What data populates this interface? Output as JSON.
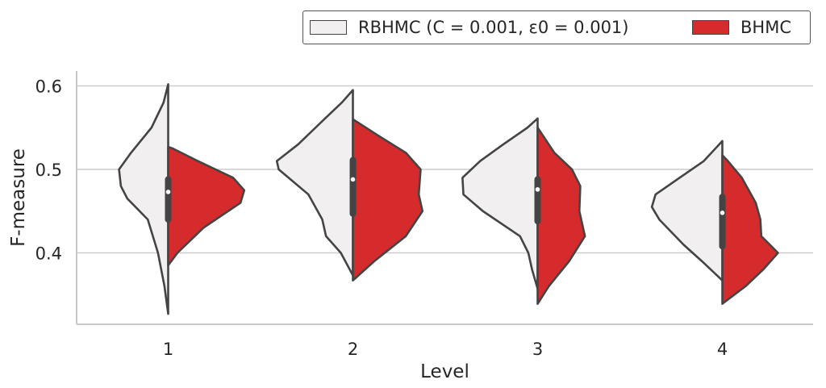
{
  "chart_data": {
    "type": "violin",
    "xlabel": "Level",
    "ylabel": "F-measure",
    "categories": [
      "1",
      "2",
      "3",
      "4"
    ],
    "yticks": [
      "0.4",
      "0.5",
      "0.6"
    ],
    "ylim": [
      0.315,
      0.625
    ],
    "grid": "horizontal",
    "legend_position": "top-right",
    "series": [
      {
        "name": "RBHMC (C = 0.001, ε0 = 0.001)",
        "color": "#f1eff0",
        "side": "left",
        "violins": [
          {
            "profile": [
              [
                0.327,
                0.0
              ],
              [
                0.36,
                0.04
              ],
              [
                0.4,
                0.11
              ],
              [
                0.44,
                0.22
              ],
              [
                0.465,
                0.44
              ],
              [
                0.48,
                0.51
              ],
              [
                0.5,
                0.53
              ],
              [
                0.52,
                0.4
              ],
              [
                0.55,
                0.18
              ],
              [
                0.58,
                0.05
              ],
              [
                0.602,
                0.0
              ]
            ],
            "median": 0.473,
            "q1": 0.44,
            "q3": 0.488
          },
          {
            "profile": [
              [
                0.373,
                0.0
              ],
              [
                0.4,
                0.13
              ],
              [
                0.42,
                0.29
              ],
              [
                0.44,
                0.33
              ],
              [
                0.47,
                0.48
              ],
              [
                0.5,
                0.8
              ],
              [
                0.51,
                0.82
              ],
              [
                0.53,
                0.59
              ],
              [
                0.56,
                0.31
              ],
              [
                0.58,
                0.12
              ],
              [
                0.595,
                0.0
              ]
            ],
            "median": 0.488,
            "q1": 0.447,
            "q3": 0.511
          },
          {
            "profile": [
              [
                0.357,
                0.0
              ],
              [
                0.38,
                0.06
              ],
              [
                0.4,
                0.1
              ],
              [
                0.42,
                0.19
              ],
              [
                0.45,
                0.59
              ],
              [
                0.47,
                0.8
              ],
              [
                0.49,
                0.81
              ],
              [
                0.51,
                0.62
              ],
              [
                0.53,
                0.37
              ],
              [
                0.55,
                0.11
              ],
              [
                0.561,
                0.0
              ]
            ],
            "median": 0.476,
            "q1": 0.438,
            "q3": 0.488
          },
          {
            "profile": [
              [
                0.367,
                0.0
              ],
              [
                0.39,
                0.22
              ],
              [
                0.41,
                0.42
              ],
              [
                0.44,
                0.68
              ],
              [
                0.455,
                0.76
              ],
              [
                0.47,
                0.72
              ],
              [
                0.49,
                0.46
              ],
              [
                0.51,
                0.2
              ],
              [
                0.534,
                0.0
              ]
            ],
            "median": 0.448,
            "q1": 0.408,
            "q3": 0.467
          }
        ]
      },
      {
        "name": "BHMC",
        "color": "#d62b2d",
        "side": "right",
        "violins": [
          {
            "profile": [
              [
                0.385,
                0.0
              ],
              [
                0.4,
                0.1
              ],
              [
                0.43,
                0.38
              ],
              [
                0.46,
                0.78
              ],
              [
                0.475,
                0.82
              ],
              [
                0.49,
                0.7
              ],
              [
                0.51,
                0.32
              ],
              [
                0.525,
                0.05
              ],
              [
                0.527,
                0.0
              ]
            ],
            "median": 0.473,
            "q1": 0.44,
            "q3": 0.488
          },
          {
            "profile": [
              [
                0.367,
                0.0
              ],
              [
                0.39,
                0.23
              ],
              [
                0.42,
                0.57
              ],
              [
                0.45,
                0.75
              ],
              [
                0.47,
                0.71
              ],
              [
                0.5,
                0.73
              ],
              [
                0.52,
                0.57
              ],
              [
                0.54,
                0.28
              ],
              [
                0.56,
                0.0
              ]
            ],
            "median": 0.488,
            "q1": 0.447,
            "q3": 0.511
          },
          {
            "profile": [
              [
                0.339,
                0.0
              ],
              [
                0.36,
                0.12
              ],
              [
                0.39,
                0.34
              ],
              [
                0.42,
                0.51
              ],
              [
                0.45,
                0.45
              ],
              [
                0.48,
                0.46
              ],
              [
                0.5,
                0.37
              ],
              [
                0.52,
                0.18
              ],
              [
                0.55,
                0.0
              ]
            ],
            "median": 0.476,
            "q1": 0.438,
            "q3": 0.488
          },
          {
            "profile": [
              [
                0.339,
                0.0
              ],
              [
                0.36,
                0.25
              ],
              [
                0.38,
                0.44
              ],
              [
                0.4,
                0.6
              ],
              [
                0.42,
                0.42
              ],
              [
                0.44,
                0.41
              ],
              [
                0.46,
                0.36
              ],
              [
                0.49,
                0.21
              ],
              [
                0.51,
                0.06
              ],
              [
                0.517,
                0.0
              ]
            ],
            "median": 0.448,
            "q1": 0.408,
            "q3": 0.467
          }
        ]
      }
    ]
  }
}
